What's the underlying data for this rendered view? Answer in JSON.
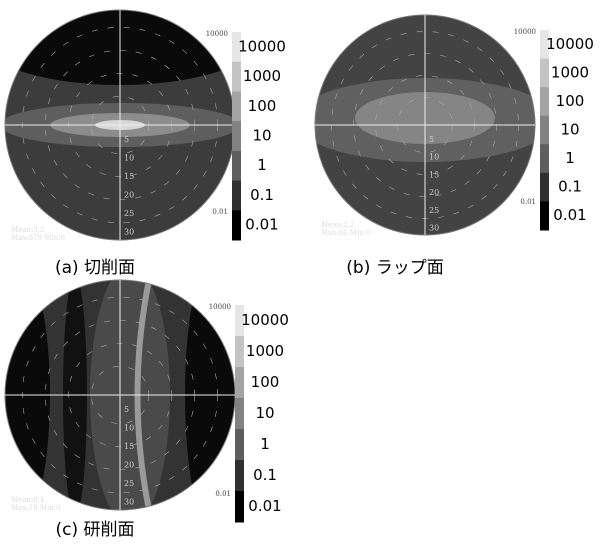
{
  "panels": [
    {
      "caption": "(a) 切削面",
      "mean": "Mean:3.2",
      "maxmin": "Max:879 Min:0",
      "corner_top": "10000",
      "corner_bottom": "0.01",
      "radial_labels": [
        "5",
        "10",
        "15",
        "20",
        "25",
        "30"
      ],
      "scale_labels": [
        "10000",
        "1000",
        "100",
        "10",
        "1",
        "0.1",
        "0.01"
      ]
    },
    {
      "caption": "(b) ラップ面",
      "mean": "Mean:2.2",
      "maxmin": "Max:66 Min:0",
      "corner_top": "10000",
      "corner_bottom": "0.01",
      "radial_labels": [
        "5",
        "10",
        "15",
        "20",
        "25",
        "30"
      ],
      "scale_labels": [
        "10000",
        "1000",
        "100",
        "10",
        "1",
        "0.1",
        "0.01"
      ]
    },
    {
      "caption": "(c) 研削面",
      "mean": "Mean:0.4",
      "maxmin": "Max:18 Min:0",
      "corner_top": "10000",
      "corner_bottom": "0.01",
      "radial_labels": [
        "5",
        "10",
        "15",
        "20",
        "25",
        "30"
      ],
      "scale_labels": [
        "10000",
        "1000",
        "100",
        "10",
        "1",
        "0.1",
        "0.01"
      ]
    }
  ]
}
